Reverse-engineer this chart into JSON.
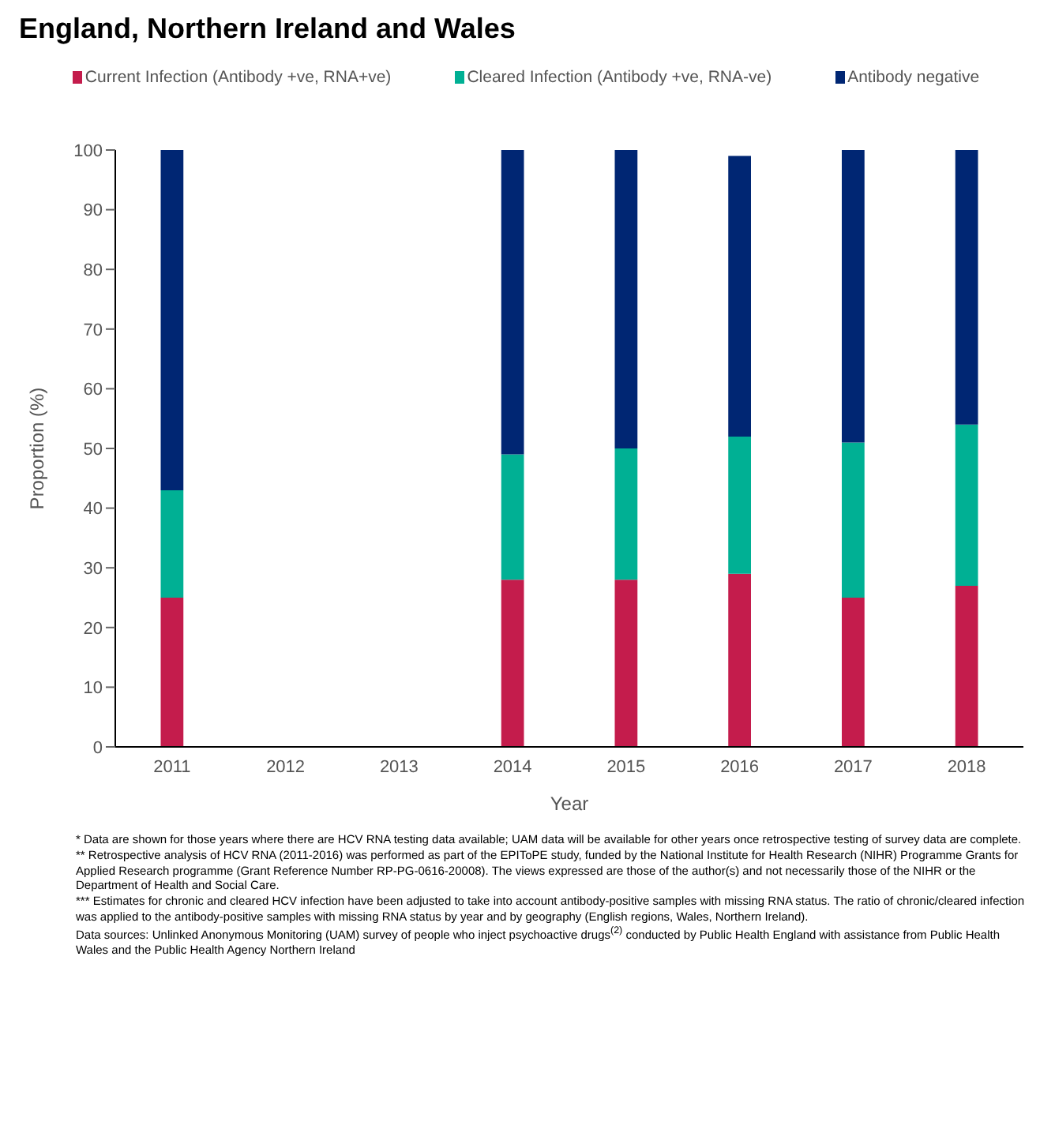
{
  "chart_data": {
    "type": "bar",
    "title": "England, Northern Ireland and Wales",
    "xlabel": "Year",
    "ylabel": "Proportion (%)",
    "categories": [
      "2011",
      "2012",
      "2013",
      "2014",
      "2015",
      "2016",
      "2017",
      "2018"
    ],
    "series": [
      {
        "name": "Current Infection (Antibody +ve, RNA+ve)",
        "color": "#c41c4c",
        "values": [
          25,
          null,
          null,
          28,
          28,
          29,
          25,
          27
        ]
      },
      {
        "name": "Cleared Infection (Antibody +ve, RNA-ve)",
        "color": "#00b094",
        "values": [
          18,
          null,
          null,
          21,
          22,
          23,
          26,
          27
        ]
      },
      {
        "name": "Antibody negative",
        "color": "#002673",
        "values": [
          57,
          null,
          null,
          51,
          50,
          47,
          49,
          46
        ]
      }
    ],
    "stacked": true,
    "ylim": [
      0,
      100
    ],
    "yticks": [
      0,
      10,
      20,
      30,
      40,
      50,
      60,
      70,
      80,
      90,
      100
    ],
    "grid": false,
    "legend": "top",
    "annotations": [
      "* Data are shown for those years where there are HCV RNA testing data available; UAM data will be available for other years once retrospective testing of survey data are complete.",
      "** Retrospective analysis of HCV RNA (2011-2016) was performed as part of the EPIToPE study, funded by the National Institute for Health Research (NIHR) Programme Grants for Applied Research programme (Grant Reference Number RP-PG-0616-20008). The views expressed are those of the author(s) and not necessarily those of the NIHR or the Department of Health and Social Care.",
      "*** Estimates for chronic and cleared HCV infection have been adjusted to take into account antibody-positive samples with missing RNA status. The ratio of chronic/cleared infection was applied to the antibody-positive samples with missing RNA status by year and by geography (English regions, Wales, Northern Ireland).",
      "Data sources: Unlinked Anonymous Monitoring (UAM) survey of people who inject psychoactive drugs$^{(2)}$ conducted by Public Health England with assistance from Public Health Wales and the Public Health Agency Northern Ireland"
    ]
  }
}
